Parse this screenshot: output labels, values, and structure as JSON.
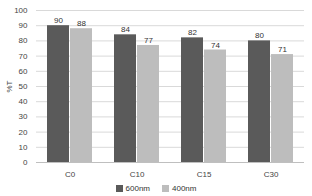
{
  "chart_data": {
    "type": "bar",
    "y_label": "%T",
    "categories": [
      "C0",
      "C10",
      "C15",
      "C30"
    ],
    "series": [
      {
        "name": "600nm",
        "color": "#5a5a5a",
        "values": [
          90,
          84,
          82,
          80
        ]
      },
      {
        "name": "400nm",
        "color": "#bdbdbd",
        "values": [
          88,
          77,
          74,
          71
        ]
      }
    ],
    "ylim": [
      0,
      100
    ],
    "yticks": [
      0,
      10,
      20,
      30,
      40,
      50,
      60,
      70,
      80,
      90,
      100
    ],
    "grid": true,
    "data_labels": true,
    "legend": "bottom"
  }
}
